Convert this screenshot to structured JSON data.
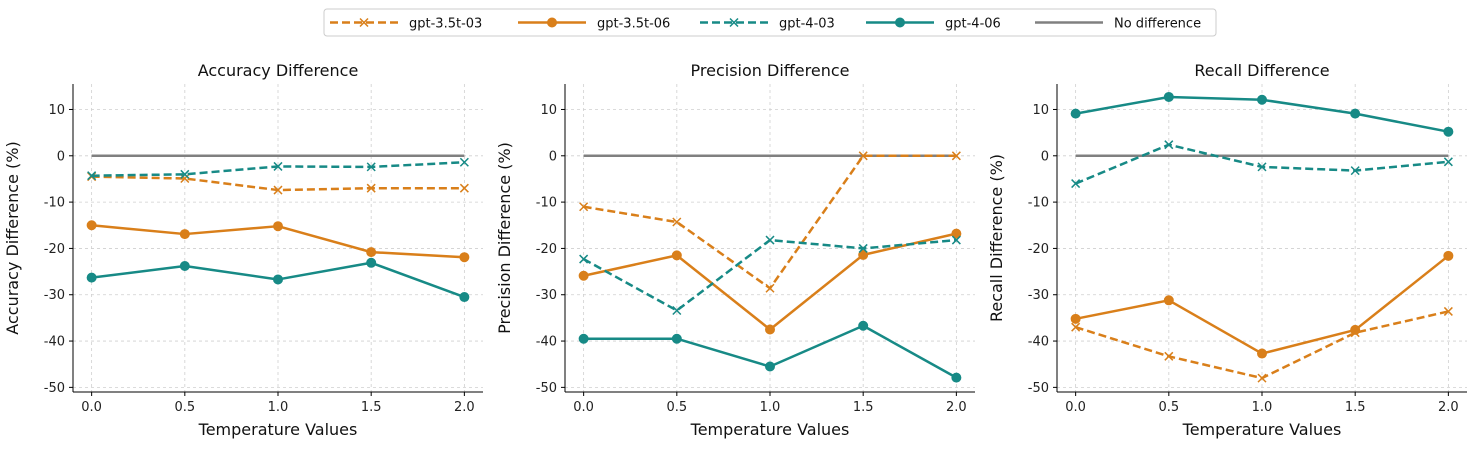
{
  "legend": [
    {
      "name": "gpt-3.5t-03",
      "color": "#d97f1a",
      "dash": true,
      "marker": "x"
    },
    {
      "name": "gpt-3.5t-06",
      "color": "#d97f1a",
      "dash": false,
      "marker": "o"
    },
    {
      "name": "gpt-4-03",
      "color": "#178a86",
      "dash": true,
      "marker": "x"
    },
    {
      "name": "gpt-4-06",
      "color": "#178a86",
      "dash": false,
      "marker": "o"
    },
    {
      "name": "No difference",
      "color": "#808080",
      "dash": false,
      "marker": "none"
    }
  ],
  "chart_data": [
    {
      "type": "line",
      "title": "Accuracy Difference",
      "xlabel": "Temperature Values",
      "ylabel": "Accuracy Difference (%)",
      "x": [
        0.0,
        0.5,
        1.0,
        1.5,
        2.0
      ],
      "x_ticks": [
        "0.0",
        "0.5",
        "1.0",
        "1.5",
        "2.0"
      ],
      "y_ticks": [
        10,
        0,
        -10,
        -20,
        -30,
        -40,
        -50
      ],
      "ylim": [
        -51,
        15.5
      ],
      "grid": true,
      "series": [
        {
          "name": "gpt-3.5t-03",
          "values": [
            -4.5,
            -4.9,
            -7.4,
            -7.0,
            -7.0
          ]
        },
        {
          "name": "gpt-3.5t-06",
          "values": [
            -15.0,
            -16.9,
            -15.2,
            -20.8,
            -21.9
          ]
        },
        {
          "name": "gpt-4-03",
          "values": [
            -4.3,
            -4.0,
            -2.3,
            -2.4,
            -1.4
          ]
        },
        {
          "name": "gpt-4-06",
          "values": [
            -26.3,
            -23.8,
            -26.7,
            -23.1,
            -30.5
          ]
        },
        {
          "name": "No difference",
          "values": [
            0,
            0,
            0,
            0,
            0
          ]
        }
      ]
    },
    {
      "type": "line",
      "title": "Precision Difference",
      "xlabel": "Temperature Values",
      "ylabel": "Precision Difference (%)",
      "x": [
        0.0,
        0.5,
        1.0,
        1.5,
        2.0
      ],
      "x_ticks": [
        "0.0",
        "0.5",
        "1.0",
        "1.5",
        "2.0"
      ],
      "y_ticks": [
        10,
        0,
        -10,
        -20,
        -30,
        -40,
        -50
      ],
      "ylim": [
        -51,
        15.5
      ],
      "grid": true,
      "series": [
        {
          "name": "gpt-3.5t-03",
          "values": [
            -11.0,
            -14.3,
            -28.6,
            0.0,
            0.0
          ]
        },
        {
          "name": "gpt-3.5t-06",
          "values": [
            -25.9,
            -21.5,
            -37.5,
            -21.4,
            -16.8
          ]
        },
        {
          "name": "gpt-4-03",
          "values": [
            -22.3,
            -33.4,
            -18.2,
            -20.0,
            -18.2
          ]
        },
        {
          "name": "gpt-4-06",
          "values": [
            -39.5,
            -39.5,
            -45.5,
            -36.7,
            -47.9
          ]
        },
        {
          "name": "No difference",
          "values": [
            0,
            0,
            0,
            0,
            0
          ]
        }
      ]
    },
    {
      "type": "line",
      "title": "Recall Difference",
      "xlabel": "Temperature Values",
      "ylabel": "Recall Difference (%)",
      "x": [
        0.0,
        0.5,
        1.0,
        1.5,
        2.0
      ],
      "x_ticks": [
        "0.0",
        "0.5",
        "1.0",
        "1.5",
        "2.0"
      ],
      "y_ticks": [
        10,
        0,
        -10,
        -20,
        -30,
        -40,
        -50
      ],
      "ylim": [
        -51,
        15.5
      ],
      "grid": true,
      "series": [
        {
          "name": "gpt-3.5t-03",
          "values": [
            -37.0,
            -43.3,
            -48.0,
            -38.2,
            -33.6
          ]
        },
        {
          "name": "gpt-3.5t-06",
          "values": [
            -35.2,
            -31.2,
            -42.7,
            -37.6,
            -21.6
          ]
        },
        {
          "name": "gpt-4-03",
          "values": [
            -6.0,
            2.4,
            -2.4,
            -3.2,
            -1.3
          ]
        },
        {
          "name": "gpt-4-06",
          "values": [
            9.1,
            12.7,
            12.1,
            9.1,
            5.2
          ]
        },
        {
          "name": "No difference",
          "values": [
            0,
            0,
            0,
            0,
            0
          ]
        }
      ]
    }
  ]
}
